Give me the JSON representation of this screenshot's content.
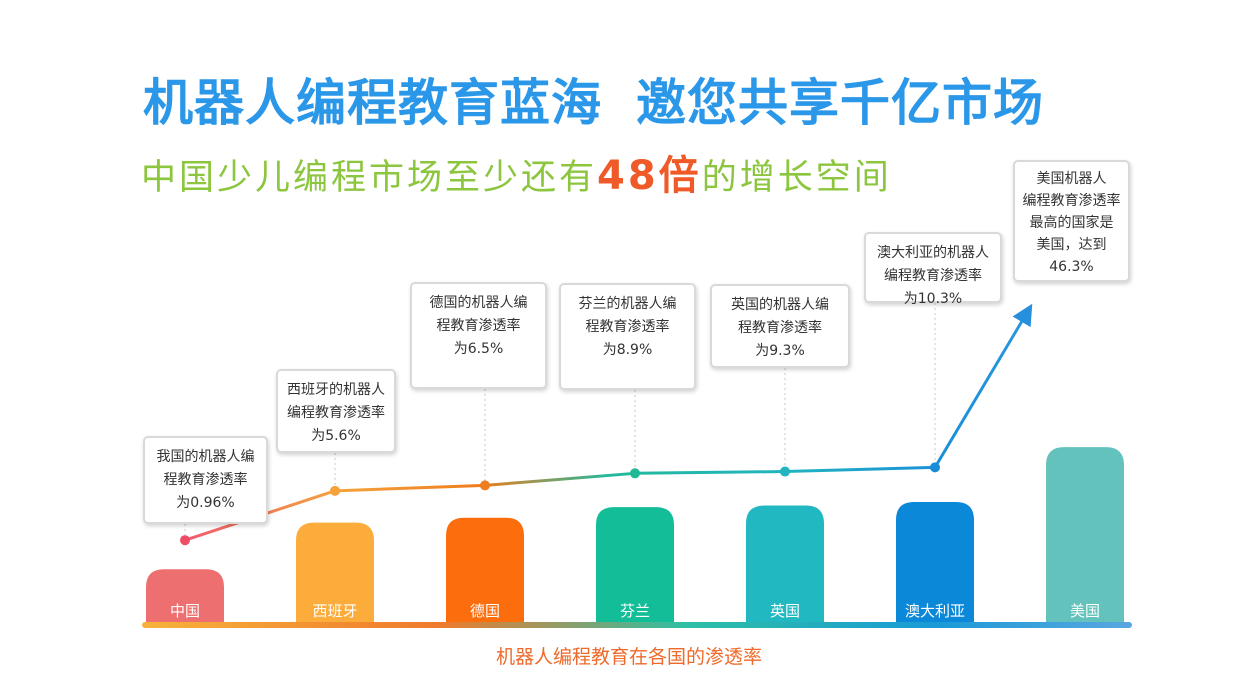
{
  "header": {
    "title_part1": "机器人编程教育蓝海",
    "title_part2": "邀您共享千亿市场",
    "subtitle_prefix": "中国少儿编程市场至少还有",
    "subtitle_highlight": "48倍",
    "subtitle_suffix": "的增长空间"
  },
  "colors": {
    "title": "#2a97e8",
    "subtitle": "#8cc63f",
    "highlight": "#ef5a28",
    "axis_title": "#ef6a2a"
  },
  "chart_data": {
    "type": "bar",
    "title": "",
    "xlabel": "机器人编程教育在各国的渗透率",
    "ylabel": "",
    "categories": [
      "中国",
      "西班牙",
      "德国",
      "芬兰",
      "英国",
      "澳大利亚",
      "美国"
    ],
    "values": [
      0.96,
      5.6,
      6.5,
      8.9,
      9.3,
      10.3,
      46.3
    ],
    "unit": "%",
    "bar_colors": [
      "#ee6f6f",
      "#fbac3a",
      "#fc6d0d",
      "#13bd98",
      "#22b8c2",
      "#0c88d8",
      "#63c2bc"
    ],
    "trend_line": true,
    "trend_arrow": true,
    "grid": false,
    "legend": "none",
    "annotations": [
      {
        "lines": [
          "我国的机器人编",
          "程教育渗透率",
          "为0.96%"
        ]
      },
      {
        "lines": [
          "西班牙的机器人",
          "编程教育渗透率",
          "为5.6%"
        ]
      },
      {
        "lines": [
          "德国的机器人编",
          "程教育渗透率",
          "为6.5%"
        ]
      },
      {
        "lines": [
          "芬兰的机器人编",
          "程教育渗透率",
          "为8.9%"
        ]
      },
      {
        "lines": [
          "英国的机器人编",
          "程教育渗透率",
          "为9.3%"
        ]
      },
      {
        "lines": [
          "澳大利亚的机器人",
          "编程教育渗透率",
          "为10.3%"
        ]
      },
      {
        "lines": [
          "美国机器人",
          "编程教育渗透率",
          "最高的国家是",
          "美国，达到",
          "46.3%"
        ]
      }
    ]
  }
}
